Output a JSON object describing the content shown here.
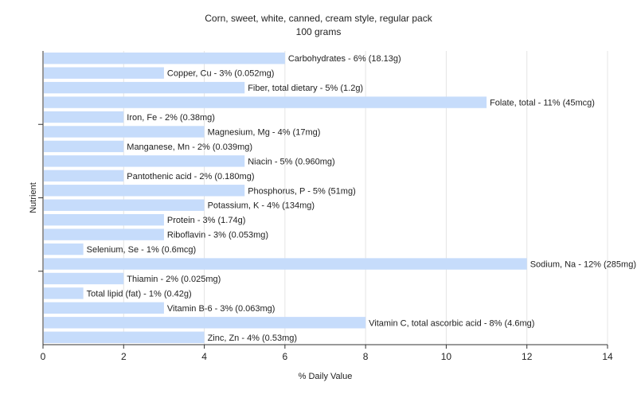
{
  "chart_data": {
    "type": "bar",
    "orientation": "horizontal",
    "title": "Corn, sweet, white, canned, cream style, regular pack",
    "subtitle": "100 grams",
    "xlabel": "% Daily Value",
    "ylabel": "Nutrient",
    "xlim": [
      0,
      14
    ],
    "xticks": [
      "0",
      "2",
      "4",
      "6",
      "8",
      "10",
      "12",
      "14"
    ],
    "grid": true,
    "bar_color": "#c6dcfb",
    "categories": [
      "Carbohydrates",
      "Copper, Cu",
      "Fiber, total dietary",
      "Folate, total",
      "Iron, Fe",
      "Magnesium, Mg",
      "Manganese, Mn",
      "Niacin",
      "Pantothenic acid",
      "Phosphorus, P",
      "Potassium, K",
      "Protein",
      "Riboflavin",
      "Selenium, Se",
      "Sodium, Na",
      "Thiamin",
      "Total lipid (fat)",
      "Vitamin B-6",
      "Vitamin C, total ascorbic acid",
      "Zinc, Zn"
    ],
    "values": [
      6,
      3,
      5,
      11,
      2,
      4,
      2,
      5,
      2,
      5,
      4,
      3,
      3,
      1,
      12,
      2,
      1,
      3,
      8,
      4
    ],
    "labels": [
      "Carbohydrates - 6% (18.13g)",
      "Copper, Cu - 3% (0.052mg)",
      "Fiber, total dietary - 5% (1.2g)",
      "Folate, total - 11% (45mcg)",
      "Iron, Fe - 2% (0.38mg)",
      "Magnesium, Mg - 4% (17mg)",
      "Manganese, Mn - 2% (0.039mg)",
      "Niacin - 5% (0.960mg)",
      "Pantothenic acid - 2% (0.180mg)",
      "Phosphorus, P - 5% (51mg)",
      "Potassium, K - 4% (134mg)",
      "Protein - 3% (1.74g)",
      "Riboflavin - 3% (0.053mg)",
      "Selenium, Se - 1% (0.6mcg)",
      "Sodium, Na - 12% (285mg)",
      "Thiamin - 2% (0.025mg)",
      "Total lipid (fat) - 1% (0.42g)",
      "Vitamin B-6 - 3% (0.063mg)",
      "Vitamin C, total ascorbic acid - 8% (4.6mg)",
      "Zinc, Zn - 4% (0.53mg)"
    ]
  }
}
